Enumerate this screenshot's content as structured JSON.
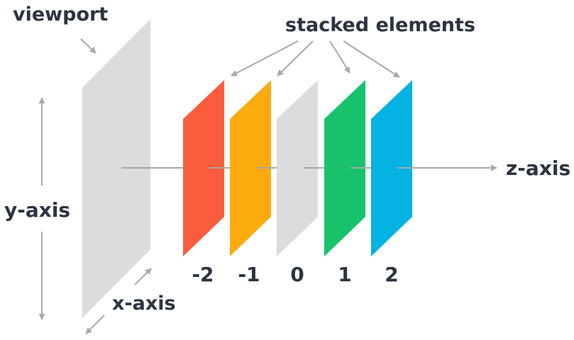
{
  "title": "",
  "labels": {
    "viewport": "viewport",
    "stacked_elements": "stacked elements",
    "y_axis": "y-axis",
    "x_axis": "x-axis",
    "z_axis": "z-axis"
  },
  "planes": [
    {
      "label": "-2",
      "color": "#f95d3e"
    },
    {
      "label": "-1",
      "color": "#fcab0f"
    },
    {
      "label": "0",
      "color": "#dcdcdf"
    },
    {
      "label": "1",
      "color": "#17c26b"
    },
    {
      "label": "2",
      "color": "#04b2e3"
    }
  ],
  "colors": {
    "viewport_plane": "#dcdcdf",
    "text": "#2b3440",
    "lines": "#a8a8a8"
  }
}
